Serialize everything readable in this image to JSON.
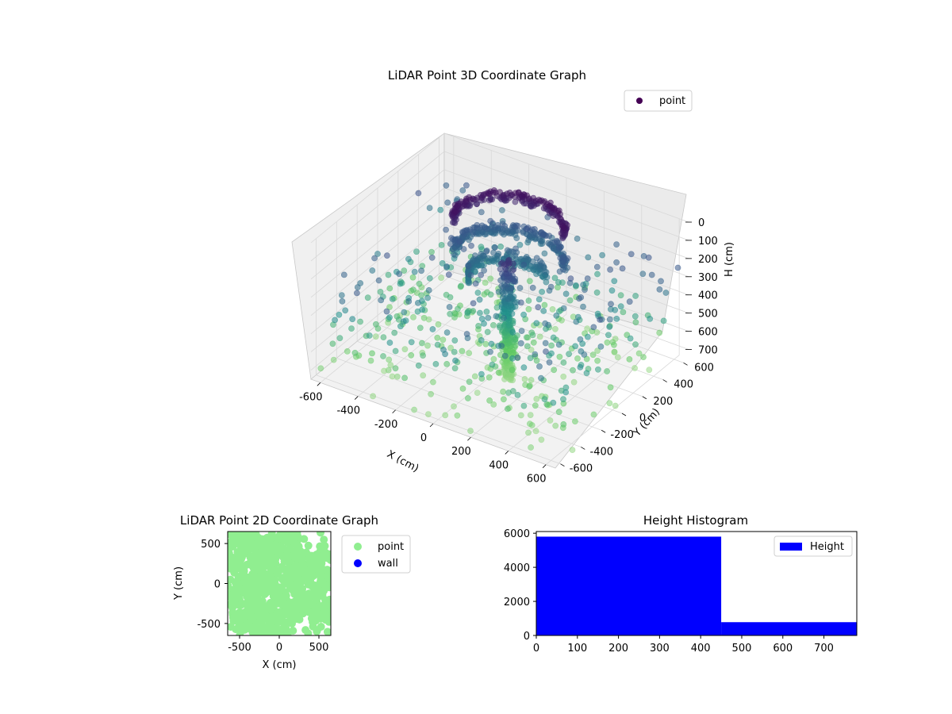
{
  "chart_data": [
    {
      "type": "scatter",
      "projection": "3d",
      "title": "LiDAR Point 3D Coordinate Graph",
      "xlabel": "X (cm)",
      "ylabel": "Y (cm)",
      "zlabel": "H (cm)",
      "x_ticks": [
        "-600",
        "-400",
        "-200",
        "0",
        "200",
        "400",
        "600"
      ],
      "y_ticks": [
        "-600",
        "-400",
        "-200",
        "0",
        "200",
        "400",
        "600"
      ],
      "z_ticks": [
        "0",
        "100",
        "200",
        "300",
        "400",
        "500",
        "600",
        "700"
      ],
      "xlim": [
        -650,
        650
      ],
      "ylim": [
        -650,
        650
      ],
      "zlim": [
        0,
        750
      ],
      "z_inverted": true,
      "grid": true,
      "legend": {
        "position": "top-right",
        "entries": [
          {
            "label": "point",
            "color": "#440154"
          }
        ]
      },
      "colormap": "viridis",
      "series": [
        {
          "name": "point"
        }
      ]
    },
    {
      "type": "scatter",
      "title": "LiDAR Point 2D Coordinate Graph",
      "xlabel": "X (cm)",
      "ylabel": "Y (cm)",
      "x_ticks": [
        "-500",
        "0",
        "500"
      ],
      "y_ticks": [
        "500",
        "0",
        "-500"
      ],
      "xlim": [
        -650,
        650
      ],
      "ylim": [
        -650,
        650
      ],
      "legend": {
        "position": "outside-right",
        "entries": [
          {
            "label": "point",
            "color": "#90ee90"
          },
          {
            "label": "wall",
            "color": "#0000ff"
          }
        ]
      },
      "series": [
        {
          "name": "point",
          "color": "#90ee90"
        },
        {
          "name": "wall",
          "color": "#0000ff",
          "values": []
        }
      ]
    },
    {
      "type": "bar",
      "title": "Height Histogram",
      "xlabel": "",
      "ylabel": "",
      "x_ticks": [
        "0",
        "100",
        "200",
        "300",
        "400",
        "500",
        "600",
        "700"
      ],
      "y_ticks": [
        "0",
        "2000",
        "4000",
        "6000"
      ],
      "xlim": [
        0,
        780
      ],
      "ylim": [
        0,
        6100
      ],
      "legend": {
        "position": "top-right",
        "entries": [
          {
            "label": "Height",
            "color": "#0000ff"
          }
        ]
      },
      "bins": [
        {
          "start": 0,
          "end": 450,
          "count": 5800
        },
        {
          "start": 450,
          "end": 780,
          "count": 780
        }
      ],
      "series": [
        {
          "name": "Height",
          "color": "#0000ff"
        }
      ]
    }
  ]
}
